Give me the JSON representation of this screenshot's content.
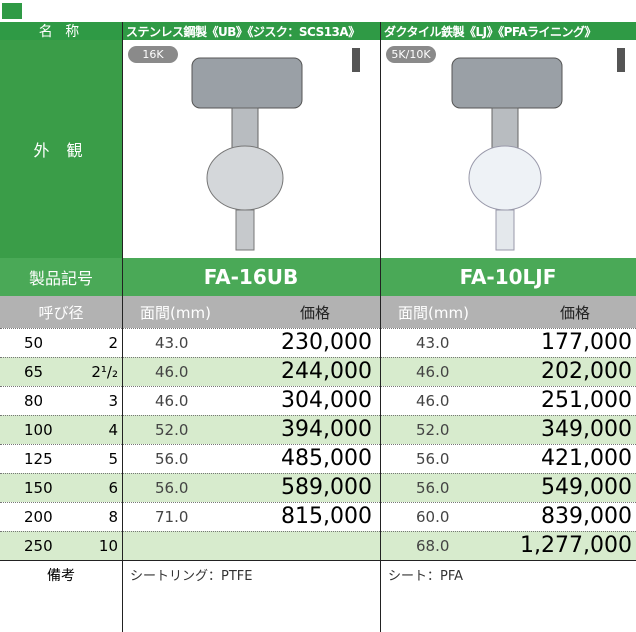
{
  "header": {
    "name_label": "名 称",
    "products": [
      "ステンレス鋼製《UB》《ジスク：SCS13A》",
      "ダクタイル鉄製《LJ》《PFAライニング》"
    ]
  },
  "appearance": {
    "label": "外 観",
    "badges": [
      "16K",
      "5K/10K"
    ]
  },
  "model": {
    "label": "製品記号",
    "codes": [
      "FA-16UB",
      "FA-10LJF"
    ]
  },
  "table": {
    "columns": [
      "呼び径",
      "面間(mm)",
      "価格",
      "面間(mm)",
      "価格"
    ],
    "rows": [
      [
        "50",
        "2",
        "43.0",
        "230,000",
        "43.0",
        "177,000"
      ],
      [
        "65",
        "2¹/₂",
        "46.0",
        "244,000",
        "46.0",
        "202,000"
      ],
      [
        "80",
        "3",
        "46.0",
        "304,000",
        "46.0",
        "251,000"
      ],
      [
        "100",
        "4",
        "52.0",
        "394,000",
        "52.0",
        "349,000"
      ],
      [
        "125",
        "5",
        "56.0",
        "485,000",
        "56.0",
        "421,000"
      ],
      [
        "150",
        "6",
        "56.0",
        "589,000",
        "56.0",
        "549,000"
      ],
      [
        "200",
        "8",
        "71.0",
        "815,000",
        "60.0",
        "839,000"
      ],
      [
        "250",
        "10",
        null,
        null,
        "68.0",
        "1,277,000"
      ]
    ]
  },
  "notes": {
    "label": "備考",
    "items": [
      "シートリング：PTFE",
      "シート：PFA"
    ]
  }
}
